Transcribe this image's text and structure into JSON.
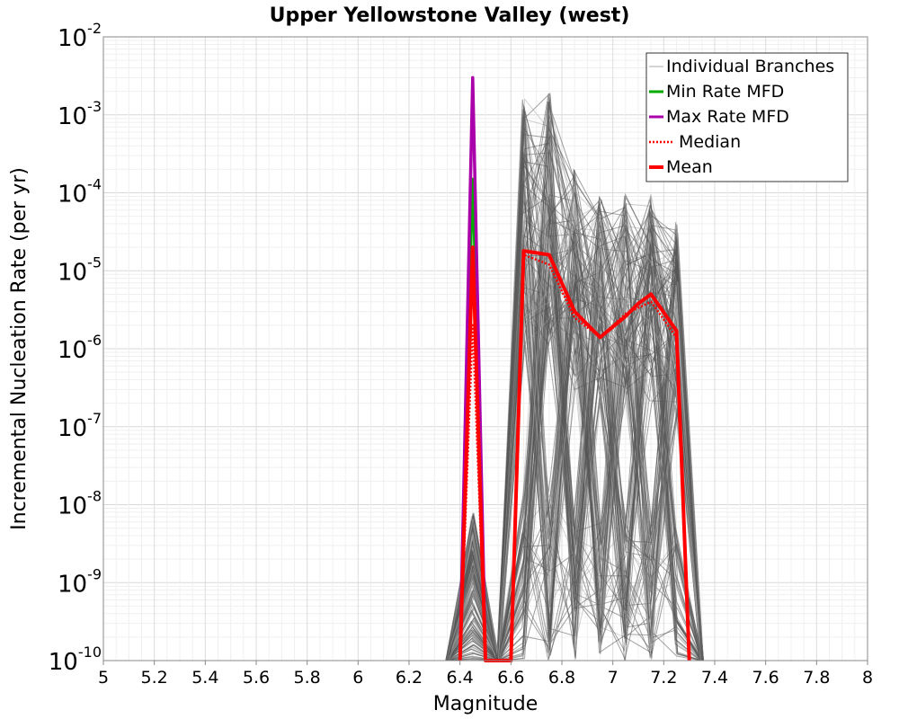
{
  "chart_data": {
    "type": "line",
    "title": "Upper Yellowstone Valley (west)",
    "xlabel": "Magnitude",
    "ylabel": "Incremental Nucleation Rate (per yr)",
    "xlim": [
      5,
      8
    ],
    "ylim": [
      1e-10,
      0.01
    ],
    "yscale": "log",
    "grid": true,
    "legend_position": "top-right",
    "x_ticks": [
      "5",
      "5.2",
      "5.4",
      "5.6",
      "5.8",
      "6",
      "6.2",
      "6.4",
      "6.6",
      "6.8",
      "7",
      "7.2",
      "7.4",
      "7.6",
      "7.8",
      "8"
    ],
    "y_tick_exponents": [
      "-10",
      "-9",
      "-8",
      "-7",
      "-6",
      "-5",
      "-4",
      "-3",
      "-2"
    ],
    "y_tick_base": "10",
    "colors": {
      "branches": "#555555",
      "branches_light": "#aaaaaa",
      "min_rate": "#00aa00",
      "max_rate": "#aa00aa",
      "median": "#ff0000",
      "mean": "#ff0000"
    },
    "series": [
      {
        "name": "Individual Branches",
        "description_only_visual": true,
        "x": [
          6.35,
          6.45,
          6.55,
          6.65,
          6.75,
          6.85,
          6.95,
          7.05,
          7.15,
          7.25,
          7.35
        ],
        "y_low": [
          1e-10,
          1e-10,
          1e-10,
          1e-10,
          1e-10,
          1e-10,
          1e-10,
          1e-10,
          1e-10,
          1e-10,
          1e-10
        ],
        "y_high": [
          1e-10,
          8e-09,
          1e-10,
          0.002,
          0.002,
          0.0002,
          0.0001,
          0.0001,
          0.0001,
          5e-05,
          1e-10
        ]
      },
      {
        "name": "Min Rate MFD",
        "x": [
          6.4,
          6.45,
          6.5
        ],
        "y": [
          1e-10,
          0.00015,
          1e-10
        ]
      },
      {
        "name": "Max Rate MFD",
        "x": [
          6.4,
          6.45,
          6.5
        ],
        "y": [
          1e-10,
          0.003,
          1e-10
        ]
      },
      {
        "name": "Median",
        "x": [
          6.4,
          6.45,
          6.5,
          6.6,
          6.65,
          6.75,
          6.85,
          6.95,
          7.05,
          7.15,
          7.25,
          7.3
        ],
        "y": [
          1e-10,
          2e-06,
          1e-10,
          1e-10,
          1.6e-05,
          1.2e-05,
          2.5e-06,
          1.4e-06,
          2.8e-06,
          4e-06,
          1.4e-06,
          1e-10
        ]
      },
      {
        "name": "Mean",
        "x": [
          6.4,
          6.45,
          6.5,
          6.6,
          6.65,
          6.75,
          6.85,
          6.95,
          7.05,
          7.1,
          7.15,
          7.25,
          7.3
        ],
        "y": [
          1e-10,
          2e-05,
          1e-10,
          1e-10,
          1.8e-05,
          1.6e-05,
          3e-06,
          1.4e-06,
          2.6e-06,
          3.8e-06,
          5e-06,
          1.7e-06,
          1e-10
        ]
      }
    ]
  }
}
